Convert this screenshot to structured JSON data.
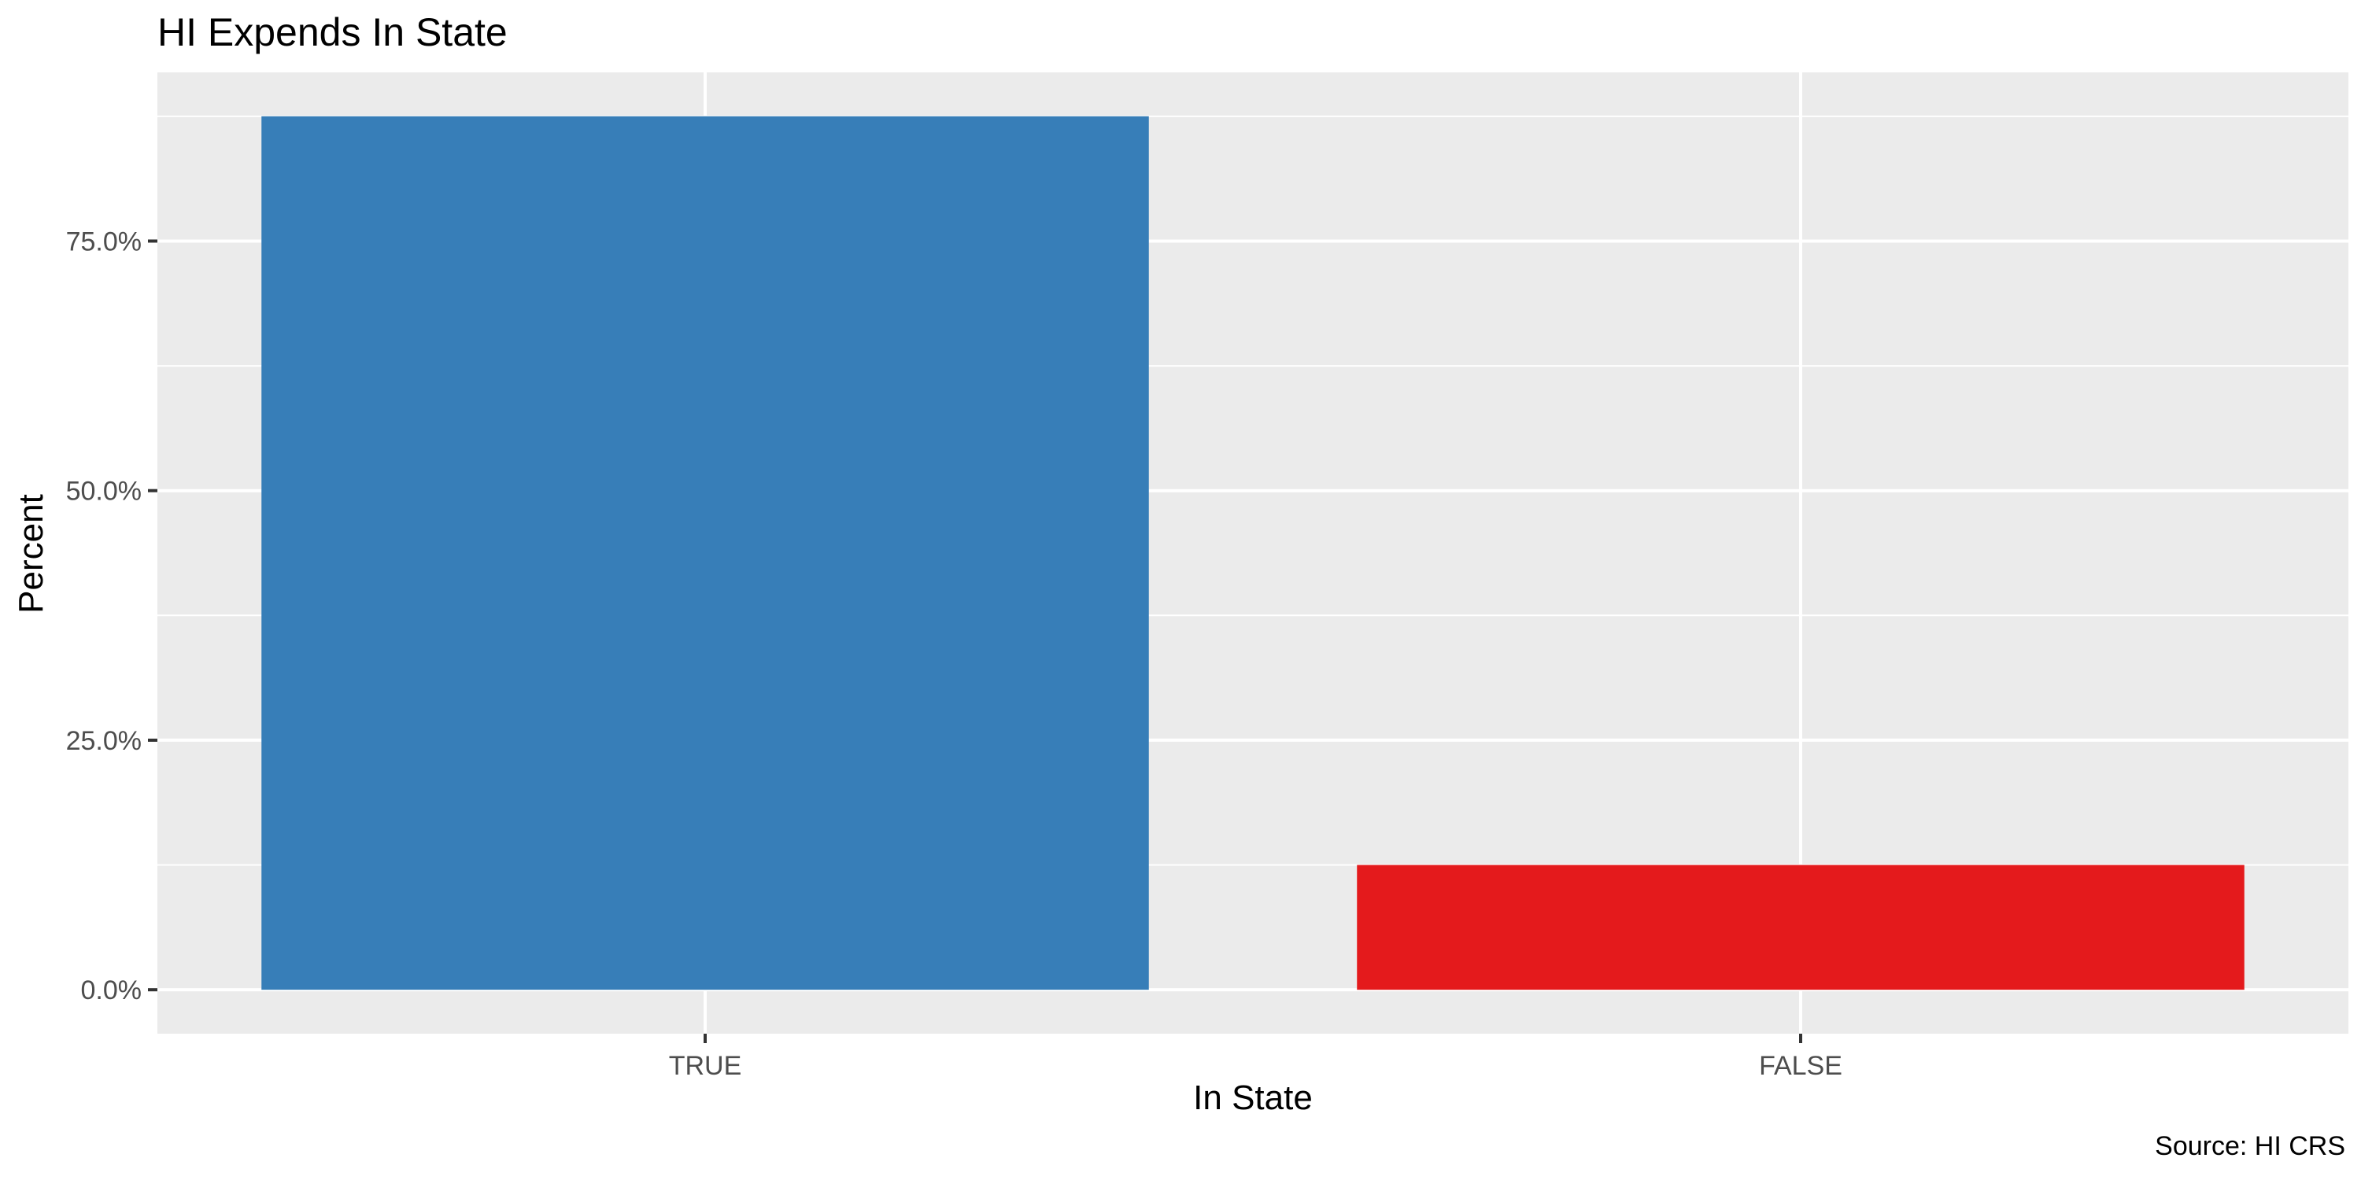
{
  "chart_data": {
    "type": "bar",
    "title": "HI Expends In State",
    "xlabel": "In State",
    "ylabel": "Percent",
    "caption": "Source: HI CRS",
    "categories": [
      "TRUE",
      "FALSE"
    ],
    "values": [
      0.875,
      0.125
    ],
    "colors": [
      "#377EB8",
      "#E41A1C"
    ],
    "ylim": [
      -0.044,
      0.919
    ],
    "y_ticks": [
      0,
      0.25,
      0.5,
      0.75
    ],
    "y_tick_labels": [
      "0.0%",
      "25.0%",
      "50.0%",
      "75.0%"
    ],
    "panel_background": "#EBEBEB",
    "gridline_color": "#FFFFFF",
    "grid": true,
    "legend": "none"
  }
}
